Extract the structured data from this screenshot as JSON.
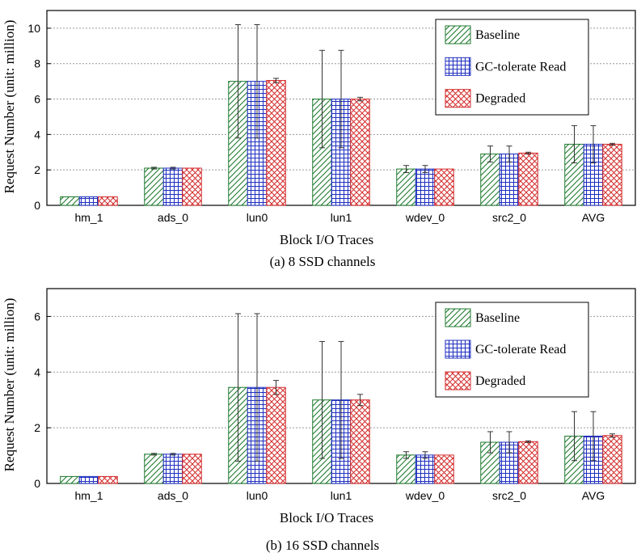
{
  "chart_data": [
    {
      "type": "bar",
      "caption": "(a) 8 SSD channels",
      "xlabel": "Block I/O Traces",
      "ylabel": "Request Number (unit: million)",
      "ylim": [
        0,
        11
      ],
      "yticks": [
        0,
        2,
        4,
        6,
        8,
        10
      ],
      "grid": true,
      "legend_position": "top-right",
      "categories": [
        "hm_1",
        "ads_0",
        "lun0",
        "lun1",
        "wdev_0",
        "src2_0",
        "AVG"
      ],
      "series": [
        {
          "name": "Baseline",
          "pattern": "diagonal",
          "color": "#1f7a2e",
          "values": [
            0.48,
            2.1,
            7.0,
            6.0,
            2.05,
            2.9,
            3.45
          ],
          "errors": [
            0,
            0.05,
            3.2,
            2.75,
            0.2,
            0.45,
            1.05
          ]
        },
        {
          "name": "GC-tolerate Read",
          "pattern": "grid",
          "color": "#1f2fbf",
          "values": [
            0.48,
            2.1,
            7.0,
            6.0,
            2.05,
            2.9,
            3.45
          ],
          "errors": [
            0,
            0.05,
            3.2,
            2.75,
            0.2,
            0.45,
            1.05
          ]
        },
        {
          "name": "Degraded",
          "pattern": "crosshatch",
          "color": "#d42a2a",
          "values": [
            0.48,
            2.1,
            7.05,
            6.0,
            2.05,
            2.95,
            3.45
          ],
          "errors": [
            0,
            0,
            0.12,
            0.1,
            0,
            0.05,
            0.05
          ]
        }
      ]
    },
    {
      "type": "bar",
      "caption": "(b) 16 SSD channels",
      "xlabel": "Block I/O Traces",
      "ylabel": "Request Number (unit: million)",
      "ylim": [
        0,
        7
      ],
      "yticks": [
        0,
        2,
        4,
        6
      ],
      "grid": true,
      "legend_position": "top-right",
      "categories": [
        "hm_1",
        "ads_0",
        "lun0",
        "lun1",
        "wdev_0",
        "src2_0",
        "AVG"
      ],
      "series": [
        {
          "name": "Baseline",
          "pattern": "diagonal",
          "color": "#1f7a2e",
          "values": [
            0.25,
            1.05,
            3.45,
            3.0,
            1.02,
            1.48,
            1.7
          ],
          "errors": [
            0,
            0.03,
            2.65,
            2.1,
            0.12,
            0.38,
            0.88
          ]
        },
        {
          "name": "GC-tolerate Read",
          "pattern": "grid",
          "color": "#1f2fbf",
          "values": [
            0.25,
            1.05,
            3.45,
            3.0,
            1.02,
            1.48,
            1.7
          ],
          "errors": [
            0,
            0.03,
            2.65,
            2.1,
            0.12,
            0.38,
            0.88
          ]
        },
        {
          "name": "Degraded",
          "pattern": "crosshatch",
          "color": "#d42a2a",
          "values": [
            0.25,
            1.05,
            3.45,
            3.0,
            1.02,
            1.5,
            1.72
          ],
          "errors": [
            0,
            0,
            0.25,
            0.2,
            0,
            0.03,
            0.06
          ]
        }
      ]
    }
  ]
}
